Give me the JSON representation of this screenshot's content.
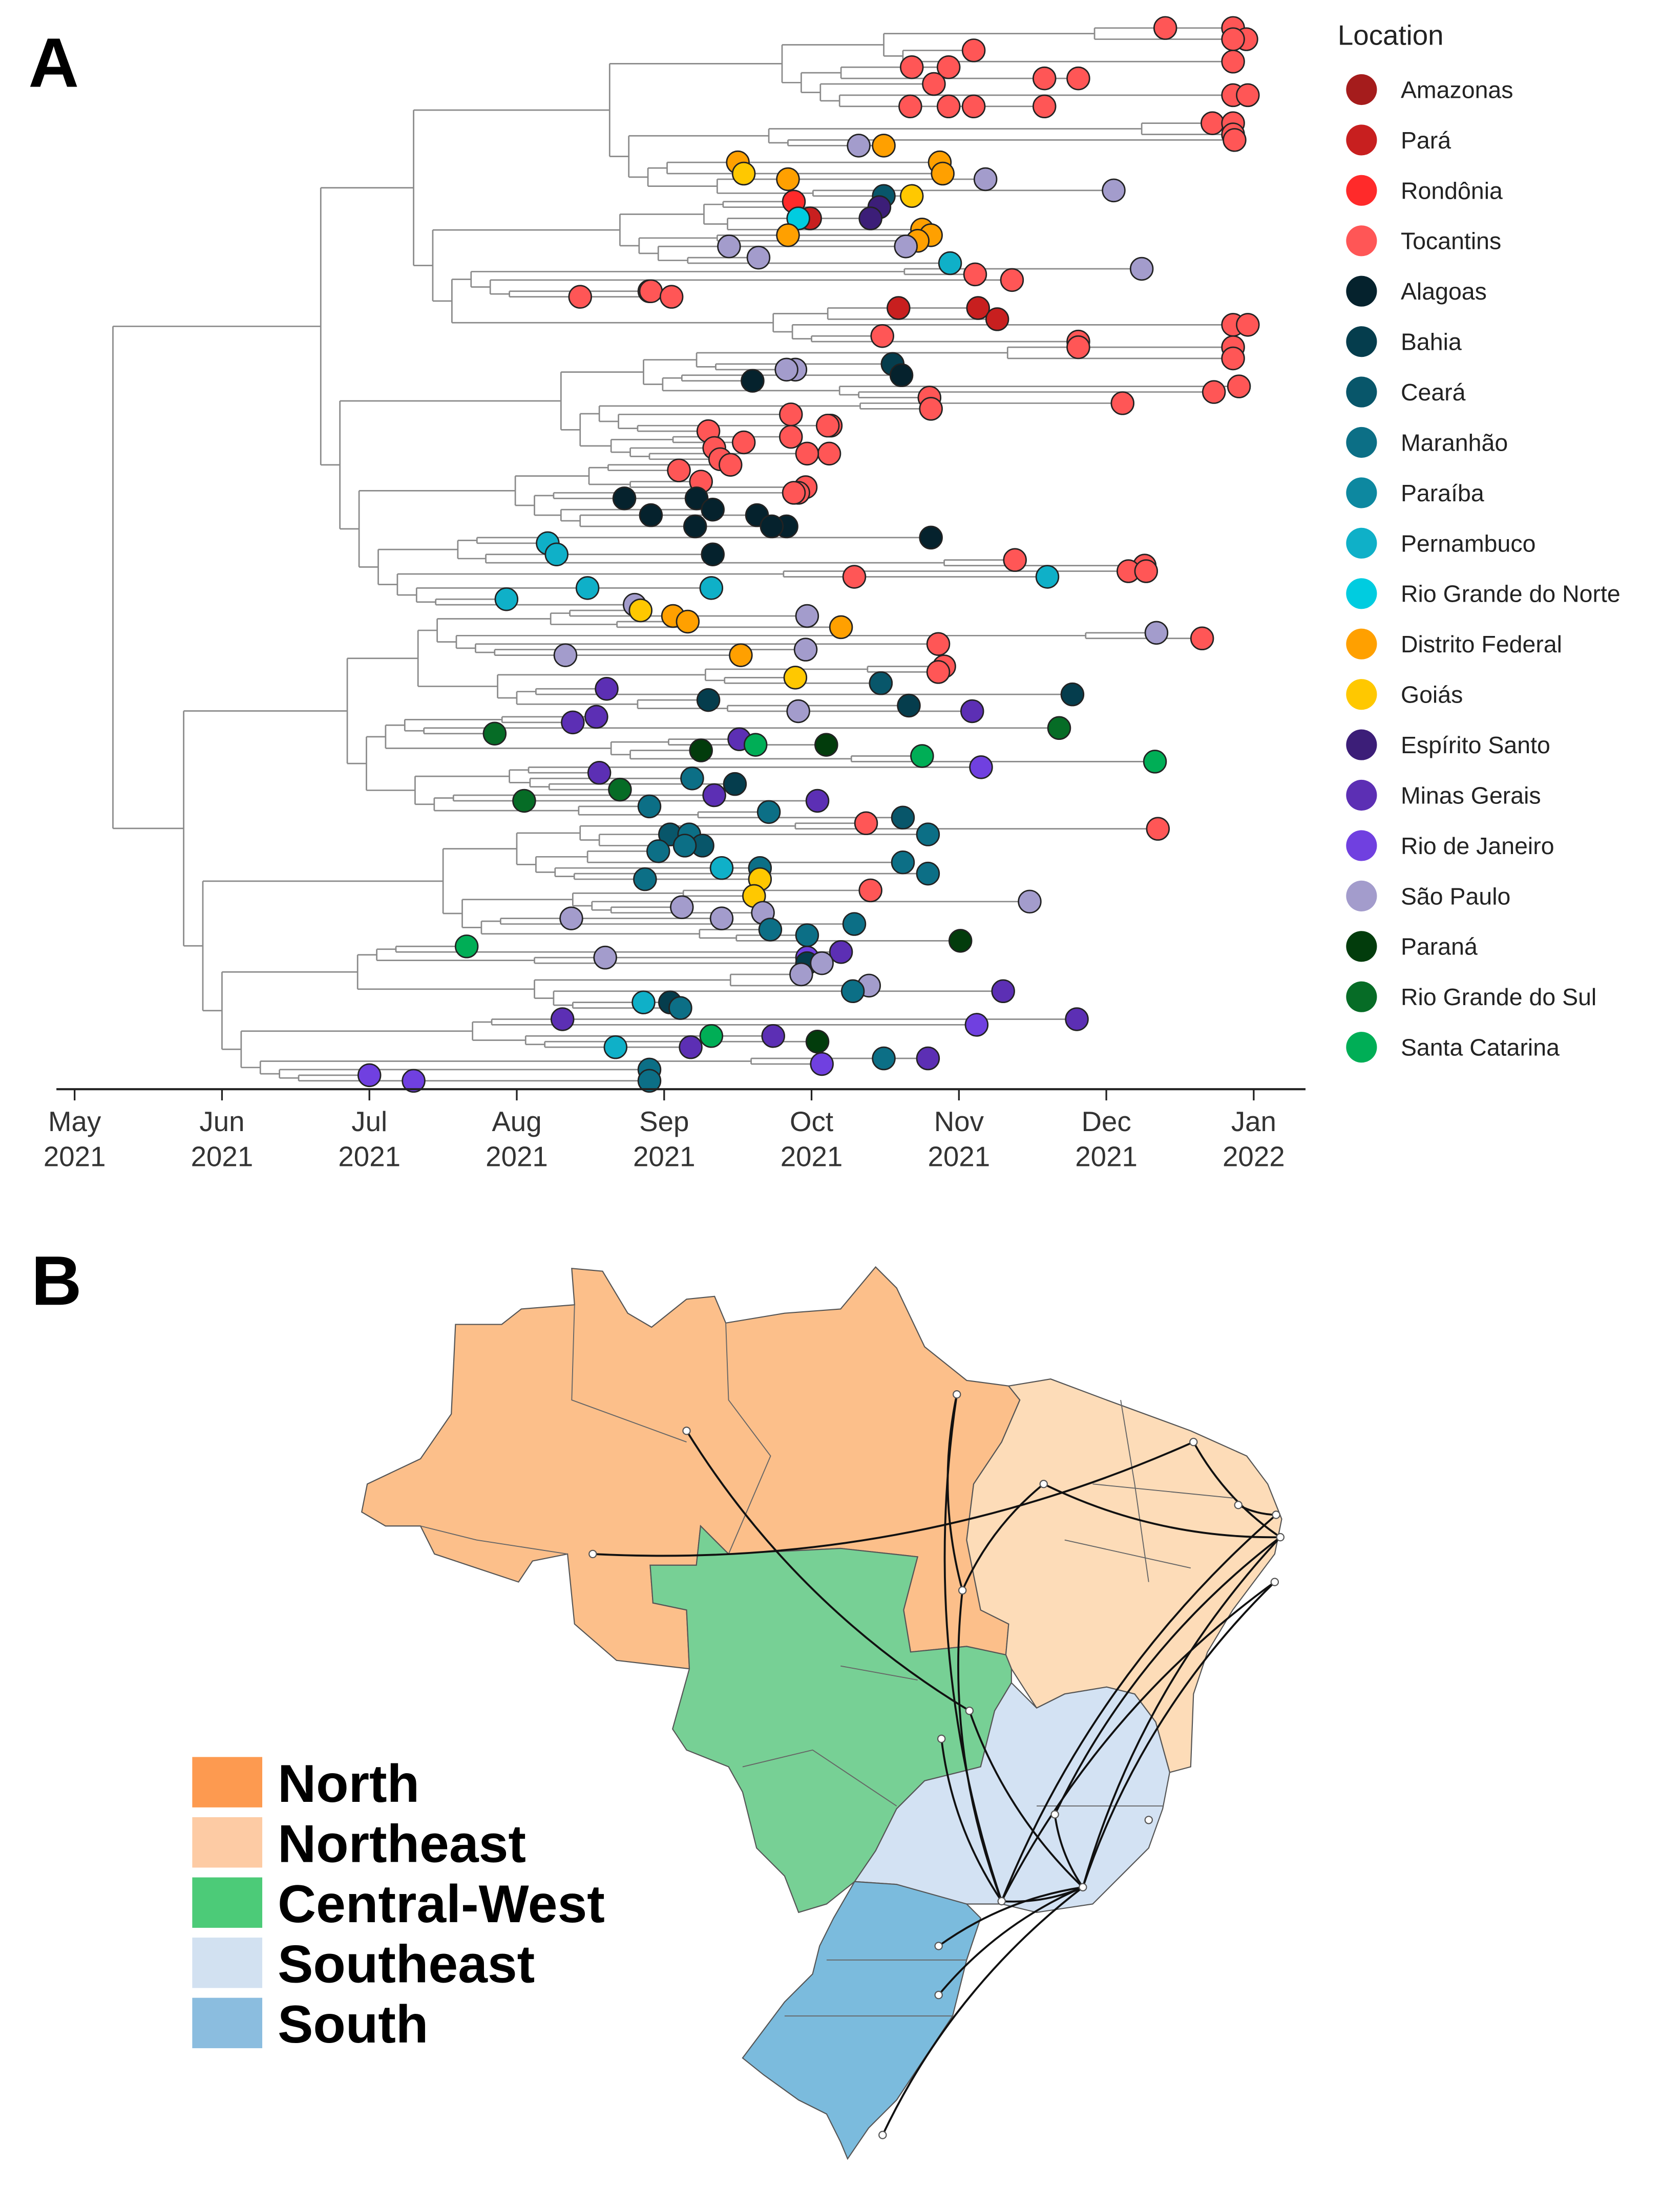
{
  "panel_a": {
    "label": "A",
    "legend_title": "Location",
    "locations": [
      {
        "name": "Amazonas",
        "color": "#a51c1c"
      },
      {
        "name": "Pará",
        "color": "#c81f1f"
      },
      {
        "name": "Rondônia",
        "color": "#ff2a2a"
      },
      {
        "name": "Tocantins",
        "color": "#ff5656"
      },
      {
        "name": "Alagoas",
        "color": "#05222d"
      },
      {
        "name": "Bahia",
        "color": "#053d4d"
      },
      {
        "name": "Ceará",
        "color": "#08566a"
      },
      {
        "name": "Maranhão",
        "color": "#0c6f86"
      },
      {
        "name": "Paraíba",
        "color": "#0d88a0"
      },
      {
        "name": "Pernambuco",
        "color": "#0fb0c8"
      },
      {
        "name": "Rio Grande do Norte",
        "color": "#00cce0"
      },
      {
        "name": "Distrito Federal",
        "color": "#ffa000"
      },
      {
        "name": "Goiás",
        "color": "#ffc800"
      },
      {
        "name": "Espírito Santo",
        "color": "#3c1e78"
      },
      {
        "name": "Minas Gerais",
        "color": "#5c2fb4"
      },
      {
        "name": "Rio de Janeiro",
        "color": "#7040e0"
      },
      {
        "name": "São Paulo",
        "color": "#a39ccc"
      },
      {
        "name": "Paraná",
        "color": "#023c0c"
      },
      {
        "name": "Rio Grande do Sul",
        "color": "#066c26"
      },
      {
        "name": "Santa Catarina",
        "color": "#00ae56"
      }
    ],
    "x_axis": {
      "unit": "months since May 2021",
      "ticks": [
        {
          "month": "May",
          "year": "2021"
        },
        {
          "month": "Jun",
          "year": "2021"
        },
        {
          "month": "Jul",
          "year": "2021"
        },
        {
          "month": "Aug",
          "year": "2021"
        },
        {
          "month": "Sep",
          "year": "2021"
        },
        {
          "month": "Oct",
          "year": "2021"
        },
        {
          "month": "Nov",
          "year": "2021"
        },
        {
          "month": "Dec",
          "year": "2021"
        },
        {
          "month": "Jan",
          "year": "2022"
        }
      ],
      "range": [
        0,
        8
      ],
      "root_time": 0.26
    },
    "tips_format": [
      "tree_order",
      "time_months",
      "location_index"
    ],
    "tips": [
      [
        0,
        7.4,
        3
      ],
      [
        0,
        7.86,
        3
      ],
      [
        2,
        7.95,
        3
      ],
      [
        2,
        7.86,
        3
      ],
      [
        4,
        6.1,
        3
      ],
      [
        6,
        7.86,
        3
      ],
      [
        7,
        5.68,
        3
      ],
      [
        7,
        5.93,
        3
      ],
      [
        9,
        6.58,
        3
      ],
      [
        9,
        6.81,
        3
      ],
      [
        10,
        5.83,
        3
      ],
      [
        12,
        7.86,
        3
      ],
      [
        12,
        7.96,
        3
      ],
      [
        14,
        5.67,
        3
      ],
      [
        14,
        5.93,
        3
      ],
      [
        14,
        6.1,
        3
      ],
      [
        14,
        6.58,
        3
      ],
      [
        17,
        7.72,
        3
      ],
      [
        17,
        7.86,
        3
      ],
      [
        19,
        7.86,
        3
      ],
      [
        20,
        7.87,
        3
      ],
      [
        21,
        5.32,
        16
      ],
      [
        21,
        5.49,
        11
      ],
      [
        24,
        4.5,
        11
      ],
      [
        24,
        5.87,
        11
      ],
      [
        26,
        4.54,
        12
      ],
      [
        26,
        5.89,
        11
      ],
      [
        27,
        4.84,
        11
      ],
      [
        27,
        6.18,
        16
      ],
      [
        29,
        7.05,
        16
      ],
      [
        30,
        5.68,
        12
      ],
      [
        30,
        5.49,
        6
      ],
      [
        31,
        4.88,
        2
      ],
      [
        32,
        5.46,
        13
      ],
      [
        34,
        4.99,
        1
      ],
      [
        34,
        4.91,
        10
      ],
      [
        34,
        5.4,
        13
      ],
      [
        36,
        5.75,
        11
      ],
      [
        37,
        4.84,
        11
      ],
      [
        37,
        5.81,
        11
      ],
      [
        38,
        5.72,
        11
      ],
      [
        39,
        4.44,
        16
      ],
      [
        39,
        5.64,
        16
      ],
      [
        41,
        4.64,
        16
      ],
      [
        42,
        5.94,
        9
      ],
      [
        43,
        7.24,
        16
      ],
      [
        44,
        6.11,
        3
      ],
      [
        45,
        6.36,
        3
      ],
      [
        47,
        3.9,
        3
      ],
      [
        47,
        3.91,
        3
      ],
      [
        48,
        3.43,
        3
      ],
      [
        48,
        4.05,
        3
      ],
      [
        50,
        6.13,
        1
      ],
      [
        50,
        5.59,
        1
      ],
      [
        52,
        6.26,
        1
      ],
      [
        53,
        7.86,
        3
      ],
      [
        53,
        7.96,
        3
      ],
      [
        55,
        5.48,
        3
      ],
      [
        56,
        6.81,
        3
      ],
      [
        57,
        6.81,
        3
      ],
      [
        57,
        7.86,
        3
      ],
      [
        59,
        7.86,
        3
      ],
      [
        60,
        5.55,
        5
      ],
      [
        61,
        4.89,
        16
      ],
      [
        61,
        4.83,
        16
      ],
      [
        62,
        5.61,
        4
      ],
      [
        63,
        4.6,
        4
      ],
      [
        64,
        7.9,
        3
      ],
      [
        65,
        7.73,
        3
      ],
      [
        66,
        5.8,
        3
      ],
      [
        67,
        7.11,
        3
      ],
      [
        68,
        5.81,
        3
      ],
      [
        69,
        4.86,
        3
      ],
      [
        71,
        5.13,
        3
      ],
      [
        71,
        5.11,
        3
      ],
      [
        72,
        4.3,
        3
      ],
      [
        73,
        4.86,
        3
      ],
      [
        74,
        4.54,
        3
      ],
      [
        75,
        4.34,
        3
      ],
      [
        76,
        5.12,
        3
      ],
      [
        76,
        4.97,
        3
      ],
      [
        77,
        4.38,
        3
      ],
      [
        78,
        4.45,
        3
      ],
      [
        79,
        4.1,
        3
      ],
      [
        81,
        4.25,
        3
      ],
      [
        82,
        4.96,
        3
      ],
      [
        83,
        4.91,
        3
      ],
      [
        83,
        4.88,
        3
      ],
      [
        84,
        3.73,
        4
      ],
      [
        84,
        4.22,
        4
      ],
      [
        86,
        4.33,
        4
      ],
      [
        87,
        3.91,
        4
      ],
      [
        87,
        4.63,
        4
      ],
      [
        89,
        4.21,
        4
      ],
      [
        89,
        4.83,
        4
      ],
      [
        89,
        4.73,
        4
      ],
      [
        91,
        5.81,
        4
      ],
      [
        92,
        3.21,
        9
      ],
      [
        94,
        4.33,
        4
      ],
      [
        94,
        3.27,
        9
      ],
      [
        95,
        6.38,
        3
      ],
      [
        96,
        7.26,
        3
      ],
      [
        97,
        7.15,
        3
      ],
      [
        97,
        7.27,
        3
      ],
      [
        98,
        5.29,
        3
      ],
      [
        98,
        6.6,
        9
      ],
      [
        100,
        4.32,
        9
      ],
      [
        100,
        3.48,
        9
      ],
      [
        102,
        2.93,
        9
      ],
      [
        103,
        3.8,
        16
      ],
      [
        104,
        3.84,
        12
      ],
      [
        105,
        4.97,
        16
      ],
      [
        105,
        4.06,
        11
      ],
      [
        106,
        4.16,
        11
      ],
      [
        107,
        5.2,
        11
      ],
      [
        108,
        7.34,
        16
      ],
      [
        109,
        7.65,
        3
      ],
      [
        110,
        5.86,
        3
      ],
      [
        111,
        4.96,
        16
      ],
      [
        112,
        3.33,
        16
      ],
      [
        112,
        4.52,
        11
      ],
      [
        114,
        5.9,
        3
      ],
      [
        115,
        5.86,
        3
      ],
      [
        116,
        4.89,
        12
      ],
      [
        117,
        5.47,
        6
      ],
      [
        117,
        5.47,
        6
      ],
      [
        118,
        3.61,
        14
      ],
      [
        119,
        6.77,
        5
      ],
      [
        120,
        4.3,
        5
      ],
      [
        121,
        5.66,
        5
      ],
      [
        122,
        4.91,
        16
      ],
      [
        122,
        6.09,
        14
      ],
      [
        123,
        3.54,
        14
      ],
      [
        124,
        3.38,
        14
      ],
      [
        125,
        6.68,
        18
      ],
      [
        126,
        2.85,
        18
      ],
      [
        127,
        4.51,
        14
      ],
      [
        128,
        4.62,
        19
      ],
      [
        128,
        5.1,
        17
      ],
      [
        129,
        4.25,
        17
      ],
      [
        130,
        5.75,
        19
      ],
      [
        131,
        7.33,
        19
      ],
      [
        132,
        6.15,
        15
      ],
      [
        133,
        3.56,
        14
      ],
      [
        134,
        4.19,
        7
      ],
      [
        135,
        4.48,
        5
      ],
      [
        136,
        3.7,
        18
      ],
      [
        137,
        4.34,
        14
      ],
      [
        138,
        5.04,
        14
      ],
      [
        138,
        3.05,
        18
      ],
      [
        139,
        3.9,
        7
      ],
      [
        140,
        4.71,
        7
      ],
      [
        141,
        5.62,
        6
      ],
      [
        142,
        5.37,
        3
      ],
      [
        143,
        7.35,
        3
      ],
      [
        144,
        4.04,
        6
      ],
      [
        144,
        5.79,
        7
      ],
      [
        144,
        4.17,
        7
      ],
      [
        146,
        4.26,
        6
      ],
      [
        146,
        4.14,
        7
      ],
      [
        147,
        3.96,
        7
      ],
      [
        149,
        5.62,
        7
      ],
      [
        150,
        4.39,
        9
      ],
      [
        150,
        4.65,
        7
      ],
      [
        151,
        5.79,
        7
      ],
      [
        152,
        3.87,
        7
      ],
      [
        152,
        4.65,
        12
      ],
      [
        154,
        5.4,
        3
      ],
      [
        155,
        4.61,
        12
      ],
      [
        156,
        6.48,
        16
      ],
      [
        157,
        4.12,
        16
      ],
      [
        158,
        4.67,
        16
      ],
      [
        159,
        3.37,
        16
      ],
      [
        159,
        4.39,
        16
      ],
      [
        160,
        5.29,
        7
      ],
      [
        161,
        4.72,
        7
      ],
      [
        162,
        4.97,
        7
      ],
      [
        163,
        6.01,
        17
      ],
      [
        164,
        2.66,
        19
      ],
      [
        165,
        5.2,
        14
      ],
      [
        166,
        4.97,
        15
      ],
      [
        166,
        3.6,
        16
      ],
      [
        167,
        4.97,
        5
      ],
      [
        167,
        5.07,
        16
      ],
      [
        169,
        4.93,
        16
      ],
      [
        171,
        5.39,
        16
      ],
      [
        172,
        6.3,
        14
      ],
      [
        172,
        5.28,
        7
      ],
      [
        174,
        3.86,
        9
      ],
      [
        174,
        4.04,
        5
      ],
      [
        175,
        4.11,
        7
      ],
      [
        177,
        3.31,
        14
      ],
      [
        177,
        6.8,
        14
      ],
      [
        178,
        6.12,
        15
      ],
      [
        180,
        4.32,
        19
      ],
      [
        180,
        4.74,
        14
      ],
      [
        181,
        5.04,
        17
      ],
      [
        182,
        4.18,
        14
      ],
      [
        182,
        3.67,
        9
      ],
      [
        184,
        5.79,
        14
      ],
      [
        184,
        5.49,
        7
      ],
      [
        185,
        5.07,
        15
      ],
      [
        186,
        3.9,
        7
      ],
      [
        187,
        2.0,
        15
      ],
      [
        188,
        2.3,
        15
      ],
      [
        188,
        3.9,
        7
      ]
    ]
  },
  "panel_b": {
    "label": "B",
    "regions": [
      {
        "name": "North",
        "color": "#fd9a50"
      },
      {
        "name": "Northeast",
        "color": "#fdcba4"
      },
      {
        "name": "Central-West",
        "color": "#4ccb78"
      },
      {
        "name": "Southeast",
        "color": "#d2e1f1"
      },
      {
        "name": "South",
        "color": "#8bbddf"
      }
    ],
    "map_fill": {
      "North": "#fcbf8a",
      "Northeast": "#fddcb8",
      "Central-West": "#77d095",
      "Southeast": "#d3e2f3",
      "South": "#7bbbdd"
    }
  }
}
